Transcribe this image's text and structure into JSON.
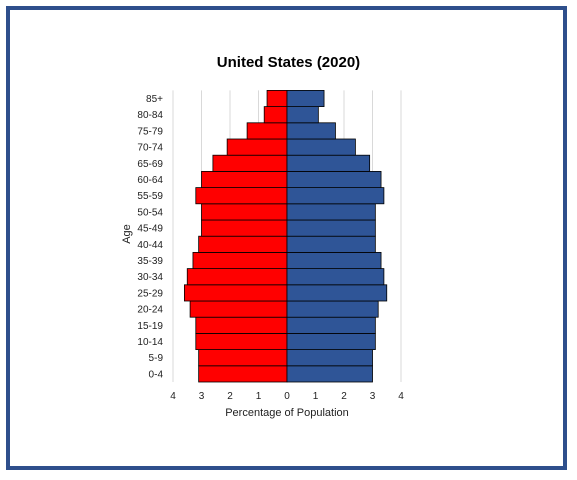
{
  "colors": {
    "male": "#ff0000",
    "female": "#2f5597",
    "frame": "#2e4f8c",
    "grid": "#d9d9d9"
  },
  "chart_data": {
    "type": "bar",
    "orientation": "horizontal",
    "title": "United States (2020)",
    "xlabel": "Percentage of Population",
    "ylabel": "Age",
    "xlim": [
      -4,
      4
    ],
    "x_ticks": [
      "4",
      "3",
      "2",
      "1",
      "0",
      "1",
      "2",
      "3",
      "4"
    ],
    "grid": true,
    "categories": [
      "0-4",
      "5-9",
      "10-14",
      "15-19",
      "20-24",
      "25-29",
      "30-34",
      "35-39",
      "40-44",
      "45-49",
      "50-54",
      "55-59",
      "60-64",
      "65-69",
      "70-74",
      "75-79",
      "80-84",
      "85+"
    ],
    "series": [
      {
        "values": [
          3.1,
          3.1,
          3.2,
          3.2,
          3.4,
          3.6,
          3.5,
          3.3,
          3.1,
          3.0,
          3.0,
          3.2,
          3.0,
          2.6,
          2.1,
          1.4,
          0.8,
          0.7
        ],
        "color": "#ff0000",
        "side": "left"
      },
      {
        "values": [
          3.0,
          3.0,
          3.1,
          3.1,
          3.2,
          3.5,
          3.4,
          3.3,
          3.1,
          3.1,
          3.1,
          3.4,
          3.3,
          2.9,
          2.4,
          1.7,
          1.1,
          1.3
        ],
        "color": "#2f5597",
        "side": "right"
      }
    ]
  }
}
